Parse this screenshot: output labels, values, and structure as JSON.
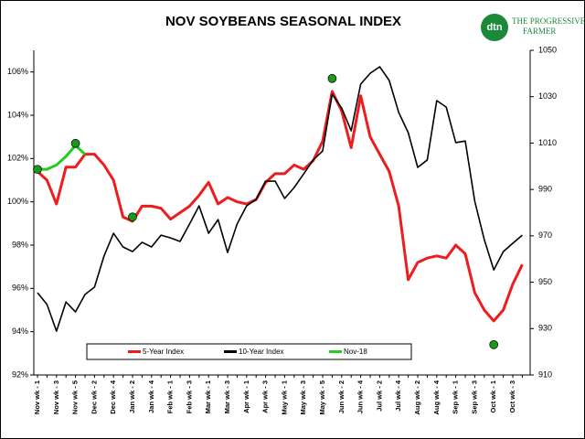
{
  "chart_data": {
    "type": "line",
    "title": "NOV SOYBEANS SEASONAL INDEX",
    "logo_badge": "dtn",
    "logo_lines": [
      "THE PROGRESSIVE",
      "FARMER"
    ],
    "categories": [
      "Nov wk - 1",
      null,
      "Nov wk - 3",
      null,
      "Nov wk - 5",
      null,
      "Dec wk - 2",
      null,
      "Dec wk - 4",
      null,
      "Jan wk - 2",
      null,
      "Jan wk - 4",
      null,
      "Feb wk - 1",
      null,
      "Feb wk - 3",
      null,
      "Mar wk - 1",
      null,
      "Mar wk - 3",
      null,
      "Apr wk - 1",
      null,
      "Apr wk - 3",
      null,
      "May wk - 1",
      null,
      "May wk - 3",
      null,
      "May wk - 5",
      null,
      "Jun wk - 2",
      null,
      "Jun wk - 4",
      null,
      "Jul wk - 2",
      null,
      "Jul wk - 4",
      null,
      "Aug wk - 2",
      null,
      "Aug wk - 4",
      null,
      "Sep wk - 1",
      null,
      "Sep wk - 3",
      null,
      "Oct wk - 1",
      null,
      "Oct wk - 3",
      null
    ],
    "series": [
      {
        "name": "5-Year Index",
        "color": "#ee1c1c",
        "values": [
          101.4,
          101.0,
          99.9,
          101.6,
          101.6,
          102.2,
          102.2,
          101.7,
          101.0,
          99.3,
          99.1,
          99.8,
          99.8,
          99.7,
          99.2,
          99.5,
          99.8,
          100.3,
          100.9,
          99.9,
          100.2,
          100.0,
          99.9,
          100.1,
          100.9,
          101.3,
          101.3,
          101.7,
          101.5,
          101.9,
          102.8,
          105.1,
          104.2,
          102.5,
          104.9,
          103.0,
          102.2,
          101.4,
          99.8,
          96.4,
          97.2,
          97.4,
          97.5,
          97.4,
          98.0,
          97.6,
          95.8,
          95.0,
          94.5,
          95.0,
          96.2,
          97.1
        ]
      },
      {
        "name": "10-Year Index",
        "color": "#000000",
        "axis": "y2",
        "values": [
          945.5,
          940.4,
          928.9,
          941.5,
          937.2,
          944.7,
          947.9,
          961.3,
          971.1,
          965.2,
          963.2,
          967.2,
          965.2,
          970.3,
          969.1,
          967.6,
          975.1,
          982.9,
          971.1,
          977.0,
          962.8,
          975.1,
          982.9,
          985.7,
          993.6,
          993.6,
          986.1,
          990.8,
          996.7,
          1002.7,
          1006.6,
          1031.1,
          1025.1,
          1015.3,
          1035.4,
          1040.1,
          1042.9,
          1037.0,
          1023.2,
          1014.5,
          999.5,
          1002.7,
          1028.3,
          1025.5,
          1010.2,
          1010.9,
          984.9,
          968.4,
          955.3,
          963.2,
          966.8,
          970.3
        ]
      },
      {
        "name": "Nov-18",
        "color": "#22cc22",
        "values": [
          101.5,
          101.5,
          101.7,
          102.1,
          102.6,
          102.2,
          null,
          null,
          null,
          null,
          null,
          null,
          null,
          null,
          null,
          null,
          null,
          null,
          null,
          null,
          null,
          null,
          null,
          null,
          null,
          null,
          null,
          null,
          null,
          null,
          null,
          null,
          null,
          null,
          null,
          null,
          null,
          null,
          null,
          null,
          null,
          null,
          null,
          null,
          null,
          null,
          null,
          null,
          null,
          null,
          null,
          null
        ]
      },
      {
        "color": "#1a9a1a",
        "markers": true,
        "values": [
          101.5,
          null,
          null,
          null,
          102.7,
          null,
          null,
          null,
          null,
          null,
          99.3,
          null,
          null,
          null,
          null,
          null,
          null,
          null,
          null,
          null,
          null,
          null,
          null,
          null,
          null,
          null,
          null,
          null,
          null,
          null,
          null,
          105.7,
          null,
          null,
          null,
          null,
          null,
          null,
          null,
          null,
          null,
          null,
          null,
          null,
          null,
          null,
          null,
          null,
          93.4,
          null,
          null,
          null
        ]
      }
    ],
    "ylim": [
      92,
      107
    ],
    "yticks": [
      {
        "value": 92,
        "label": "92%"
      },
      {
        "value": 94,
        "label": "94%"
      },
      {
        "value": 96,
        "label": "96%"
      },
      {
        "value": 98,
        "label": "98%"
      },
      {
        "value": 100,
        "label": "100%"
      },
      {
        "value": 102,
        "label": "102%"
      },
      {
        "value": 104,
        "label": "104%"
      },
      {
        "value": 106,
        "label": "106%"
      }
    ],
    "y2lim": [
      910,
      1050
    ],
    "y2ticks": [
      910,
      930,
      950,
      970,
      990,
      1010,
      1030,
      1050
    ],
    "legend": "bottom"
  }
}
